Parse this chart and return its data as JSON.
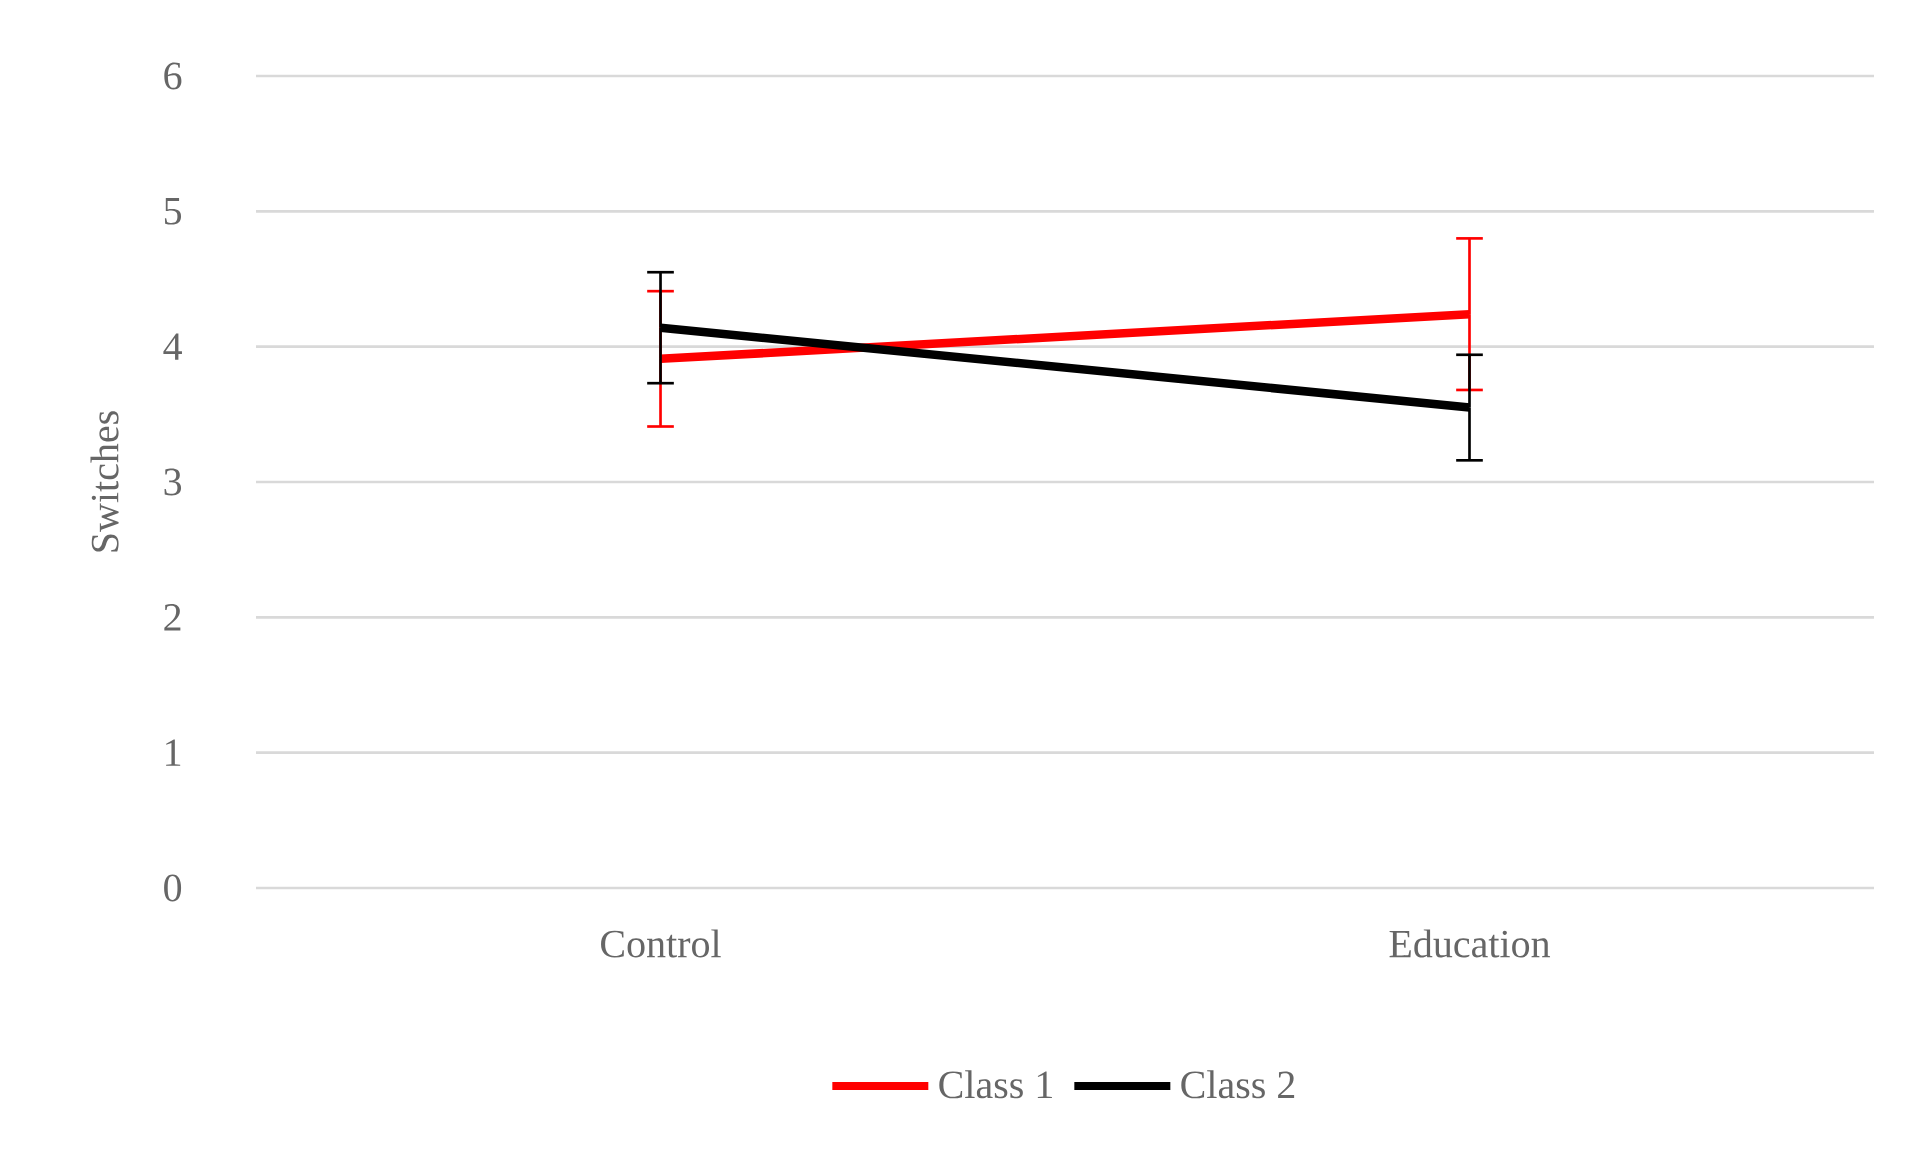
{
  "chart_data": {
    "type": "line",
    "ylabel": "Switches",
    "categories": [
      "Control",
      "Education"
    ],
    "series": [
      {
        "name": "Class 1",
        "color": "#ff0000",
        "values": [
          3.91,
          4.24
        ],
        "errors": [
          0.5,
          0.56
        ]
      },
      {
        "name": "Class 2",
        "color": "#000000",
        "values": [
          4.14,
          3.55
        ],
        "errors": [
          0.41,
          0.39
        ]
      }
    ],
    "ylim": [
      0,
      6
    ],
    "yticks": [
      0,
      1,
      2,
      3,
      4,
      5,
      6
    ],
    "grid": "y",
    "legend": "bottom",
    "marker": "none",
    "line_style": "solid"
  }
}
